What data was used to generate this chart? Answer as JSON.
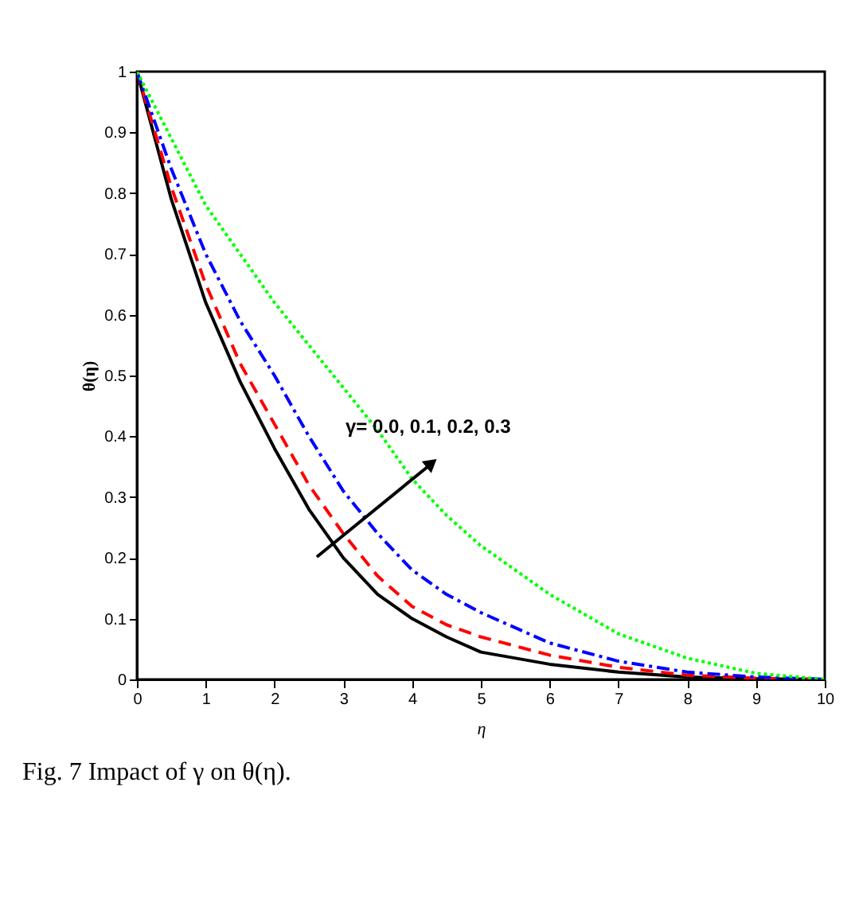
{
  "chart_data": {
    "type": "line",
    "xlabel": "η",
    "ylabel": "θ(η)",
    "x": [
      0,
      0.5,
      1,
      1.5,
      2,
      2.5,
      3,
      3.5,
      4,
      4.5,
      5,
      6,
      7,
      8,
      9,
      10
    ],
    "series": [
      {
        "color": "#000000",
        "line_style": "solid",
        "values": [
          1,
          0.79,
          0.62,
          0.49,
          0.38,
          0.28,
          0.2,
          0.14,
          0.1,
          0.07,
          0.045,
          0.025,
          0.012,
          0.004,
          0.001,
          0
        ]
      },
      {
        "color": "#ff0000",
        "line_style": "dashed",
        "values": [
          1,
          0.81,
          0.65,
          0.52,
          0.42,
          0.32,
          0.24,
          0.17,
          0.12,
          0.09,
          0.07,
          0.04,
          0.02,
          0.007,
          0.002,
          0
        ]
      },
      {
        "color": "#0000ff",
        "line_style": "dashdot",
        "values": [
          1,
          0.84,
          0.7,
          0.59,
          0.5,
          0.4,
          0.31,
          0.24,
          0.18,
          0.14,
          0.11,
          0.06,
          0.03,
          0.012,
          0.004,
          0
        ]
      },
      {
        "color": "#00ff00",
        "line_style": "dotted",
        "values": [
          1,
          0.89,
          0.78,
          0.7,
          0.62,
          0.55,
          0.48,
          0.41,
          0.33,
          0.27,
          0.22,
          0.14,
          0.075,
          0.035,
          0.01,
          0
        ]
      }
    ],
    "xlim": [
      0,
      10
    ],
    "ylim": [
      0,
      1
    ],
    "xticks": [
      0,
      1,
      2,
      3,
      4,
      5,
      6,
      7,
      8,
      9,
      10
    ],
    "yticks": [
      0,
      0.1,
      0.2,
      0.3,
      0.4,
      0.5,
      0.6,
      0.7,
      0.8,
      0.9,
      1
    ],
    "grid": false,
    "marker": "none",
    "annotations": [
      "γ= 0.0, 0.1, 0.2, 0.3",
      "Fig. 7 Impact of γ on θ(η)."
    ]
  }
}
